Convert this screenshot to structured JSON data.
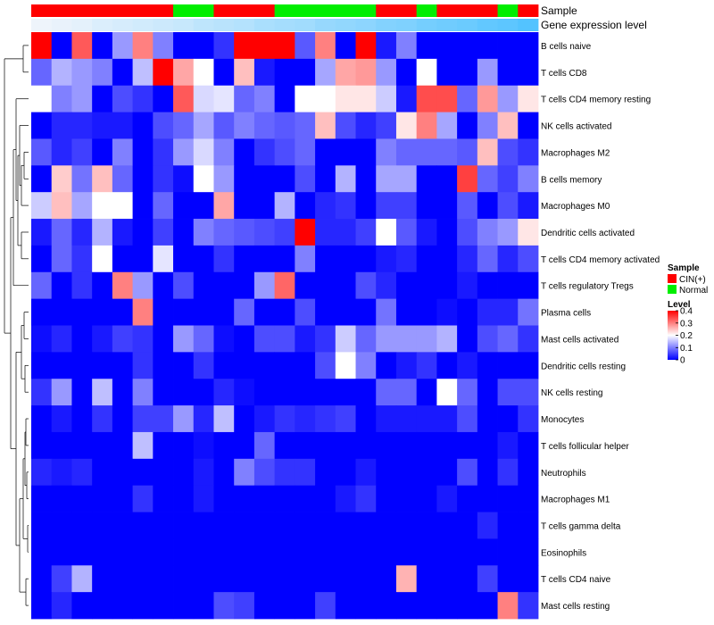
{
  "chart_data": {
    "type": "heatmap",
    "title": "",
    "annotation_tracks": [
      {
        "label": "Sample",
        "values": [
          "CIN(+)",
          "CIN(+)",
          "CIN(+)",
          "CIN(+)",
          "CIN(+)",
          "CIN(+)",
          "CIN(+)",
          "Normal",
          "Normal",
          "CIN(+)",
          "CIN(+)",
          "CIN(+)",
          "Normal",
          "Normal",
          "Normal",
          "Normal",
          "Normal",
          "CIN(+)",
          "CIN(+)",
          "Normal",
          "CIN(+)",
          "CIN(+)",
          "CIN(+)",
          "Normal",
          "CIN(+)"
        ]
      },
      {
        "label": "Gene expression level",
        "values": [
          0.0,
          0.01,
          0.02,
          0.04,
          0.05,
          0.06,
          0.07,
          0.08,
          0.1,
          0.11,
          0.12,
          0.14,
          0.15,
          0.16,
          0.18,
          0.19,
          0.2,
          0.22,
          0.23,
          0.25,
          0.26,
          0.27,
          0.29,
          0.3,
          0.32
        ]
      }
    ],
    "rows": [
      "B cells naive",
      "T cells CD8",
      "T cells CD4 memory resting",
      "NK cells activated",
      "Macrophages M2",
      "B cells memory",
      "Macrophages M0",
      "Dendritic cells activated",
      "T cells CD4 memory activated",
      "T cells regulatory  Tregs",
      "Plasma cells",
      "Mast cells activated",
      "Dendritic cells resting",
      "NK cells resting",
      "Monocytes",
      "T cells follicular helper",
      "Neutrophils",
      "Macrophages M1",
      "T cells gamma delta",
      "Eosinophils",
      "T cells CD4 naive",
      "Mast cells resting"
    ],
    "values": [
      [
        0.4,
        0.0,
        0.33,
        0.0,
        0.12,
        0.3,
        0.1,
        0.0,
        0.0,
        0.04,
        0.4,
        0.4,
        0.4,
        0.07,
        0.3,
        0.0,
        0.4,
        0.02,
        0.1,
        0.0,
        0.0,
        0.0,
        0.0,
        0.0,
        0.0
      ],
      [
        0.08,
        0.14,
        0.12,
        0.1,
        0.0,
        0.15,
        0.4,
        0.27,
        0.2,
        0.0,
        0.25,
        0.02,
        0.0,
        0.0,
        0.13,
        0.27,
        0.28,
        0.12,
        0.0,
        0.2,
        0.0,
        0.0,
        0.12,
        0.0,
        0.0
      ],
      [
        0.2,
        0.1,
        0.12,
        0.0,
        0.06,
        0.04,
        0.0,
        0.33,
        0.17,
        0.18,
        0.08,
        0.1,
        0.0,
        0.2,
        0.2,
        0.22,
        0.22,
        0.16,
        0.02,
        0.34,
        0.34,
        0.08,
        0.28,
        0.12,
        0.22
      ],
      [
        0.0,
        0.03,
        0.03,
        0.02,
        0.02,
        0.0,
        0.06,
        0.08,
        0.13,
        0.07,
        0.1,
        0.08,
        0.07,
        0.08,
        0.25,
        0.06,
        0.03,
        0.05,
        0.22,
        0.3,
        0.13,
        0.0,
        0.1,
        0.25,
        0.0
      ],
      [
        0.07,
        0.03,
        0.05,
        0.0,
        0.1,
        0.0,
        0.04,
        0.12,
        0.17,
        0.1,
        0.0,
        0.04,
        0.06,
        0.08,
        0.0,
        0.0,
        0.0,
        0.1,
        0.08,
        0.08,
        0.08,
        0.07,
        0.25,
        0.06,
        0.04
      ],
      [
        0.0,
        0.24,
        0.09,
        0.25,
        0.08,
        0.0,
        0.04,
        0.01,
        0.2,
        0.12,
        0.0,
        0.0,
        0.0,
        0.06,
        0.0,
        0.14,
        0.0,
        0.13,
        0.13,
        0.0,
        0.0,
        0.35,
        0.08,
        0.05,
        0.1
      ],
      [
        0.16,
        0.25,
        0.13,
        0.2,
        0.2,
        0.0,
        0.08,
        0.0,
        0.0,
        0.27,
        0.0,
        0.0,
        0.14,
        0.0,
        0.03,
        0.04,
        0.0,
        0.05,
        0.05,
        0.0,
        0.0,
        0.07,
        0.0,
        0.06,
        0.02
      ],
      [
        0.02,
        0.08,
        0.03,
        0.14,
        0.02,
        0.0,
        0.05,
        0.0,
        0.1,
        0.08,
        0.07,
        0.06,
        0.05,
        0.4,
        0.03,
        0.03,
        0.05,
        0.2,
        0.07,
        0.02,
        0.0,
        0.06,
        0.1,
        0.12,
        0.22
      ],
      [
        0.0,
        0.08,
        0.04,
        0.2,
        0.0,
        0.0,
        0.18,
        0.0,
        0.0,
        0.04,
        0.0,
        0.0,
        0.0,
        0.1,
        0.0,
        0.0,
        0.0,
        0.02,
        0.03,
        0.0,
        0.0,
        0.03,
        0.08,
        0.03,
        0.06
      ],
      [
        0.08,
        0.0,
        0.04,
        0.0,
        0.3,
        0.12,
        0.0,
        0.06,
        0.0,
        0.0,
        0.0,
        0.12,
        0.32,
        0.0,
        0.0,
        0.0,
        0.06,
        0.03,
        0.0,
        0.0,
        0.0,
        0.02,
        0.0,
        0.0,
        0.0
      ],
      [
        0.0,
        0.0,
        0.0,
        0.0,
        0.0,
        0.3,
        0.0,
        0.0,
        0.0,
        0.0,
        0.08,
        0.0,
        0.0,
        0.06,
        0.0,
        0.0,
        0.0,
        0.09,
        0.0,
        0.0,
        0.01,
        0.0,
        0.03,
        0.03,
        0.09
      ],
      [
        0.01,
        0.03,
        0.0,
        0.02,
        0.05,
        0.04,
        0.0,
        0.12,
        0.08,
        0.01,
        0.0,
        0.06,
        0.06,
        0.02,
        0.04,
        0.16,
        0.08,
        0.12,
        0.12,
        0.12,
        0.14,
        0.0,
        0.06,
        0.08,
        0.04
      ],
      [
        0.0,
        0.0,
        0.0,
        0.0,
        0.0,
        0.04,
        0.0,
        0.0,
        0.04,
        0.0,
        0.0,
        0.0,
        0.0,
        0.0,
        0.06,
        0.2,
        0.1,
        0.0,
        0.02,
        0.04,
        0.0,
        0.02,
        0.0,
        0.0,
        0.0
      ],
      [
        0.04,
        0.12,
        0.0,
        0.15,
        0.0,
        0.1,
        0.0,
        0.0,
        0.0,
        0.03,
        0.01,
        0.0,
        0.0,
        0.0,
        0.0,
        0.0,
        0.0,
        0.08,
        0.08,
        0.0,
        0.2,
        0.08,
        0.0,
        0.06,
        0.06
      ],
      [
        0.0,
        0.02,
        0.0,
        0.04,
        0.0,
        0.05,
        0.05,
        0.12,
        0.03,
        0.15,
        0.0,
        0.02,
        0.04,
        0.03,
        0.04,
        0.05,
        0.0,
        0.02,
        0.02,
        0.02,
        0.02,
        0.06,
        0.0,
        0.0,
        0.04
      ],
      [
        0.0,
        0.0,
        0.0,
        0.0,
        0.0,
        0.15,
        0.0,
        0.0,
        0.01,
        0.0,
        0.0,
        0.08,
        0.0,
        0.0,
        0.0,
        0.0,
        0.0,
        0.0,
        0.0,
        0.0,
        0.0,
        0.0,
        0.0,
        0.02,
        0.0
      ],
      [
        0.03,
        0.02,
        0.03,
        0.0,
        0.0,
        0.0,
        0.0,
        0.0,
        0.02,
        0.0,
        0.1,
        0.06,
        0.04,
        0.04,
        0.0,
        0.0,
        0.02,
        0.0,
        0.0,
        0.0,
        0.0,
        0.06,
        0.0,
        0.04,
        0.0
      ],
      [
        0.0,
        0.0,
        0.0,
        0.0,
        0.0,
        0.04,
        0.0,
        0.0,
        0.02,
        0.0,
        0.0,
        0.0,
        0.0,
        0.0,
        0.0,
        0.02,
        0.04,
        0.0,
        0.0,
        0.0,
        0.02,
        0.0,
        0.0,
        0.0,
        0.0
      ],
      [
        0.0,
        0.0,
        0.0,
        0.0,
        0.0,
        0.0,
        0.0,
        0.0,
        0.0,
        0.0,
        0.0,
        0.0,
        0.0,
        0.0,
        0.0,
        0.0,
        0.0,
        0.0,
        0.0,
        0.0,
        0.0,
        0.0,
        0.03,
        0.0,
        0.0
      ],
      [
        0.0,
        0.0,
        0.0,
        0.0,
        0.0,
        0.0,
        0.0,
        0.0,
        0.0,
        0.0,
        0.0,
        0.0,
        0.0,
        0.0,
        0.0,
        0.0,
        0.0,
        0.0,
        0.0,
        0.0,
        0.0,
        0.0,
        0.0,
        0.0,
        0.0
      ],
      [
        0.0,
        0.05,
        0.14,
        0.0,
        0.0,
        0.0,
        0.0,
        0.0,
        0.0,
        0.0,
        0.0,
        0.0,
        0.0,
        0.0,
        0.0,
        0.0,
        0.0,
        0.0,
        0.26,
        0.0,
        0.0,
        0.0,
        0.05,
        0.0,
        0.0
      ],
      [
        0.0,
        0.03,
        0.0,
        0.0,
        0.0,
        0.0,
        0.0,
        0.0,
        0.0,
        0.06,
        0.05,
        0.0,
        0.0,
        0.0,
        0.05,
        0.0,
        0.0,
        0.0,
        0.0,
        0.0,
        0.0,
        0.0,
        0.0,
        0.3,
        0.04
      ]
    ],
    "color_scale": {
      "min": 0,
      "max": 0.4,
      "colors": [
        "#0000ff",
        "#ffffff",
        "#ff0000"
      ]
    },
    "legend": {
      "position": "right",
      "sample_title": "Sample",
      "sample_entries": [
        {
          "label": "CIN(+)",
          "color": "#ff0000"
        },
        {
          "label": "Normal",
          "color": "#00ee00"
        }
      ],
      "level_title": "Level",
      "level_ticks": [
        "0.4",
        "0.3",
        "0.2",
        "0.1",
        "0"
      ],
      "level_tick_values": [
        0.4,
        0.3,
        0.2,
        0.1,
        0
      ]
    },
    "gene_track_colors": [
      "#eef4fb",
      "#53c3ff"
    ]
  }
}
